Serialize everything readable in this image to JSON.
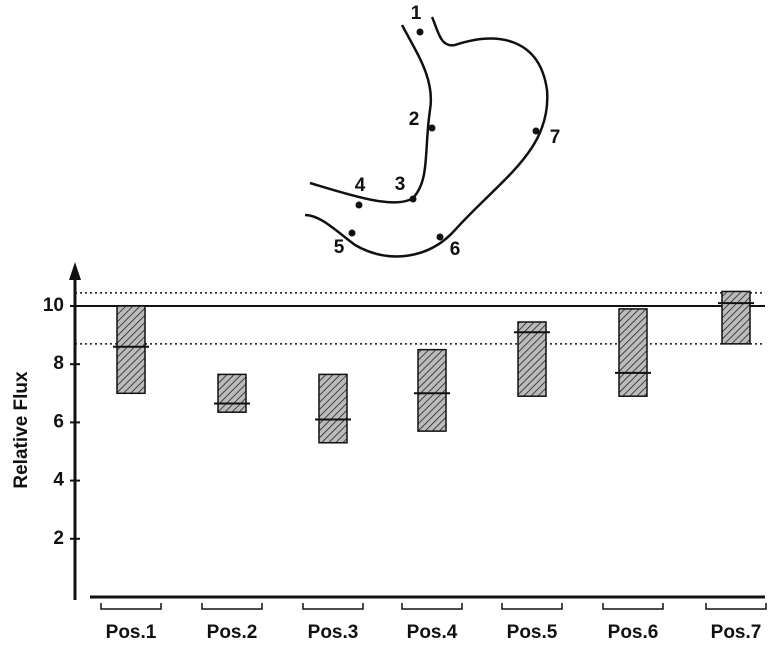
{
  "chart_data": {
    "type": "floating-bar",
    "y_label": "Relative Flux",
    "categories": [
      "Pos.1",
      "Pos.2",
      "Pos.3",
      "Pos.4",
      "Pos.5",
      "Pos.6",
      "Pos.7"
    ],
    "high": [
      10.0,
      7.65,
      7.65,
      8.5,
      9.45,
      9.9,
      10.5
    ],
    "low": [
      7.0,
      6.35,
      5.3,
      5.7,
      6.9,
      6.9,
      8.7
    ],
    "median": [
      8.6,
      6.65,
      6.1,
      7.0,
      9.1,
      7.7,
      10.1
    ],
    "color": "#777777",
    "ylim": [
      0,
      11.3
    ],
    "yticks": [
      2,
      4,
      6,
      8,
      10
    ],
    "reference_lines": [
      {
        "value": 10,
        "style": "solid"
      },
      {
        "value": 10.45,
        "style": "dotted"
      },
      {
        "value": 8.7,
        "style": "dotted"
      }
    ]
  },
  "diagram": {
    "labels": [
      "1",
      "2",
      "3",
      "4",
      "5",
      "6",
      "7"
    ]
  }
}
